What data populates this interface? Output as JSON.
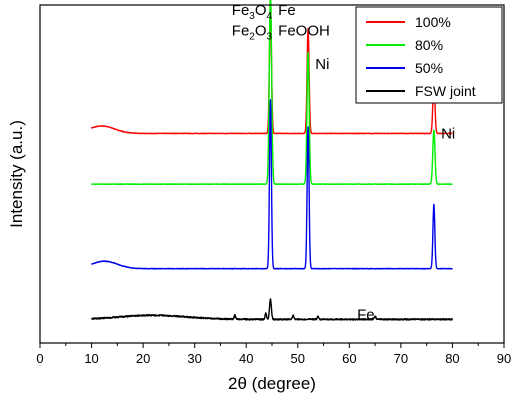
{
  "chart_data": {
    "type": "line",
    "xlabel": "2θ (degree)",
    "ylabel": "Intensity (a.u.)",
    "xlim": [
      0,
      90
    ],
    "x_ticks": [
      "0",
      "10",
      "20",
      "30",
      "40",
      "50",
      "60",
      "70",
      "80",
      "90"
    ],
    "y_ticks_shown": false,
    "legend_position": "top-right",
    "series": [
      {
        "name": "100%",
        "color": "#ff0000",
        "baseline": 0.62,
        "hump": {
          "center": 12,
          "width": 3.5,
          "height": 0.022
        },
        "peaks": [
          {
            "x": 44.7,
            "height": 0.38,
            "width": 0.28
          },
          {
            "x": 52.0,
            "height": 0.31,
            "width": 0.28
          },
          {
            "x": 76.4,
            "height": 0.16,
            "width": 0.28
          }
        ]
      },
      {
        "name": "80%",
        "color": "#00ee00",
        "baseline": 0.47,
        "hump": {
          "center": 12,
          "width": 3.5,
          "height": 0.0
        },
        "peaks": [
          {
            "x": 44.7,
            "height": 0.57,
            "width": 0.32
          },
          {
            "x": 52.0,
            "height": 0.39,
            "width": 0.3
          },
          {
            "x": 76.4,
            "height": 0.16,
            "width": 0.3
          }
        ]
      },
      {
        "name": "50%",
        "color": "#0000ee",
        "baseline": 0.22,
        "hump": {
          "center": 12.5,
          "width": 3.5,
          "height": 0.022
        },
        "peaks": [
          {
            "x": 44.7,
            "height": 0.5,
            "width": 0.26
          },
          {
            "x": 52.0,
            "height": 0.42,
            "width": 0.26
          },
          {
            "x": 76.4,
            "height": 0.19,
            "width": 0.26
          }
        ]
      },
      {
        "name": "FSW joint",
        "color": "#000000",
        "baseline": 0.07,
        "hump": {
          "center": 22,
          "width": 9,
          "height": 0.012
        },
        "peaks": [
          {
            "x": 37.8,
            "height": 0.012,
            "width": 0.2
          },
          {
            "x": 43.8,
            "height": 0.018,
            "width": 0.2
          },
          {
            "x": 44.7,
            "height": 0.06,
            "width": 0.25
          },
          {
            "x": 49.1,
            "height": 0.012,
            "width": 0.2
          },
          {
            "x": 53.9,
            "height": 0.008,
            "width": 0.2
          },
          {
            "x": 65.0,
            "height": 0.01,
            "width": 0.2
          }
        ],
        "noise": 0.004
      }
    ],
    "annotations": [
      {
        "id": "fe3o4",
        "base": "Fe",
        "sub": "3",
        "base2": "O",
        "sub2": "4",
        "x": 37.2,
        "y": 0.985
      },
      {
        "id": "fe-top",
        "base": "Fe",
        "x": 46.2,
        "y": 0.985
      },
      {
        "id": "fe2o3",
        "base": "Fe",
        "sub": "2",
        "base2": "O",
        "sub2": "3",
        "x": 37.2,
        "y": 0.925
      },
      {
        "id": "feooh",
        "base": "FeOOH",
        "x": 46.2,
        "y": 0.925
      },
      {
        "id": "ni-52",
        "base": "Ni",
        "x": 53.4,
        "y": 0.825
      },
      {
        "id": "ni-76",
        "base": "Ni",
        "x": 77.8,
        "y": 0.62
      },
      {
        "id": "fe-bottom",
        "base": "Fe",
        "x": 61.5,
        "y": 0.085
      }
    ]
  }
}
